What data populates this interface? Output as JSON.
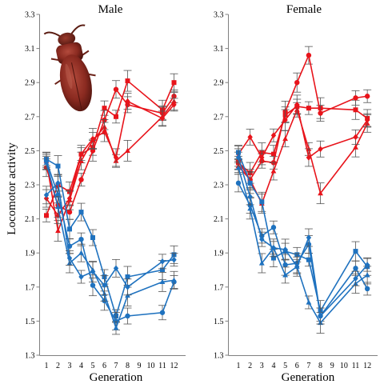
{
  "colors": {
    "up": "#e8141b",
    "down": "#1f72bf",
    "error": "#555555"
  },
  "icons": {
    "beetle": "beetle-photo"
  },
  "chart_data": [
    {
      "type": "line",
      "title": "Male",
      "xlabel": "Generation",
      "ylabel": "Locomotor activity",
      "x": [
        1,
        2,
        3,
        4,
        5,
        6,
        7,
        8,
        11,
        12
      ],
      "xticks": [
        "1",
        "2",
        "3",
        "4",
        "5",
        "6",
        "7",
        "8",
        "9",
        "10",
        "11",
        "12"
      ],
      "yticks": [
        "1.3",
        "1.5",
        "1.7",
        "1.9",
        "2.1",
        "2.3",
        "2.5",
        "2.7",
        "2.9",
        "3.1",
        "3.3"
      ],
      "ylim": [
        1.3,
        3.3
      ],
      "grid": false,
      "series": [
        {
          "group": "up",
          "marker": "square",
          "values": [
            2.12,
            2.3,
            2.26,
            2.48,
            2.52,
            2.75,
            2.7,
            2.91,
            2.74,
            2.9
          ]
        },
        {
          "group": "up",
          "marker": "circle",
          "values": [
            2.4,
            2.18,
            2.14,
            2.33,
            2.5,
            2.68,
            2.86,
            2.77,
            2.72,
            2.82
          ]
        },
        {
          "group": "up",
          "marker": "triangle",
          "values": [
            2.44,
            2.03,
            2.21,
            2.44,
            2.56,
            2.64,
            2.44,
            2.5,
            2.7,
            2.79
          ]
        },
        {
          "group": "up",
          "marker": "diamond",
          "values": [
            2.22,
            2.12,
            2.22,
            2.48,
            2.57,
            2.61,
            2.46,
            2.79,
            2.69,
            2.77
          ]
        },
        {
          "group": "down",
          "marker": "square",
          "values": [
            2.45,
            2.41,
            2.04,
            2.14,
            1.99,
            1.76,
            1.53,
            1.76,
            1.8,
            1.89
          ]
        },
        {
          "group": "down",
          "marker": "circle",
          "values": [
            2.44,
            2.24,
            1.94,
            1.98,
            1.71,
            1.62,
            1.5,
            1.53,
            1.55,
            1.73
          ]
        },
        {
          "group": "down",
          "marker": "triangle",
          "values": [
            2.43,
            2.17,
            1.84,
            1.9,
            1.8,
            1.66,
            1.46,
            1.65,
            1.73,
            1.74
          ]
        },
        {
          "group": "down",
          "marker": "diamond",
          "values": [
            2.24,
            2.31,
            1.87,
            1.76,
            1.79,
            1.71,
            1.81,
            1.7,
            1.85,
            1.86
          ]
        }
      ]
    },
    {
      "type": "line",
      "title": "Female",
      "xlabel": "Generation",
      "ylabel": "",
      "x": [
        1,
        2,
        3,
        4,
        5,
        6,
        7,
        8,
        11,
        12
      ],
      "xticks": [
        "1",
        "2",
        "3",
        "4",
        "5",
        "6",
        "7",
        "8",
        "9",
        "10",
        "11",
        "12"
      ],
      "yticks": [
        "1.3",
        "1.5",
        "1.7",
        "1.9",
        "2.1",
        "2.3",
        "2.5",
        "2.7",
        "2.9",
        "3.1",
        "3.3"
      ],
      "ylim": [
        1.3,
        3.3
      ],
      "grid": false,
      "series": [
        {
          "group": "up",
          "marker": "square",
          "values": [
            2.43,
            2.37,
            2.49,
            2.48,
            2.71,
            2.76,
            2.75,
            2.75,
            2.74,
            2.69
          ]
        },
        {
          "group": "up",
          "marker": "circle",
          "values": [
            2.44,
            2.33,
            2.44,
            2.43,
            2.73,
            2.9,
            3.06,
            2.72,
            2.81,
            2.82
          ]
        },
        {
          "group": "up",
          "marker": "triangle",
          "values": [
            2.41,
            2.33,
            2.19,
            2.38,
            2.57,
            2.74,
            2.51,
            2.25,
            2.52,
            2.66
          ]
        },
        {
          "group": "up",
          "marker": "diamond",
          "values": [
            2.48,
            2.58,
            2.46,
            2.59,
            2.68,
            2.77,
            2.46,
            2.51,
            2.58,
            2.68
          ]
        },
        {
          "group": "down",
          "marker": "square",
          "values": [
            2.49,
            2.31,
            2.2,
            1.87,
            1.91,
            1.89,
            1.86,
            1.56,
            1.91,
            1.82
          ]
        },
        {
          "group": "down",
          "marker": "circle",
          "values": [
            2.31,
            2.18,
            2.0,
            2.05,
            1.83,
            1.84,
            1.95,
            1.53,
            1.81,
            1.69
          ]
        },
        {
          "group": "down",
          "marker": "triangle",
          "values": [
            2.4,
            2.16,
            1.84,
            1.93,
            1.77,
            1.82,
            1.61,
            1.49,
            1.72,
            1.77
          ]
        },
        {
          "group": "down",
          "marker": "diamond",
          "values": [
            2.46,
            2.23,
            1.98,
            1.93,
            1.92,
            1.82,
            1.99,
            1.53,
            1.75,
            1.83
          ]
        }
      ]
    }
  ]
}
